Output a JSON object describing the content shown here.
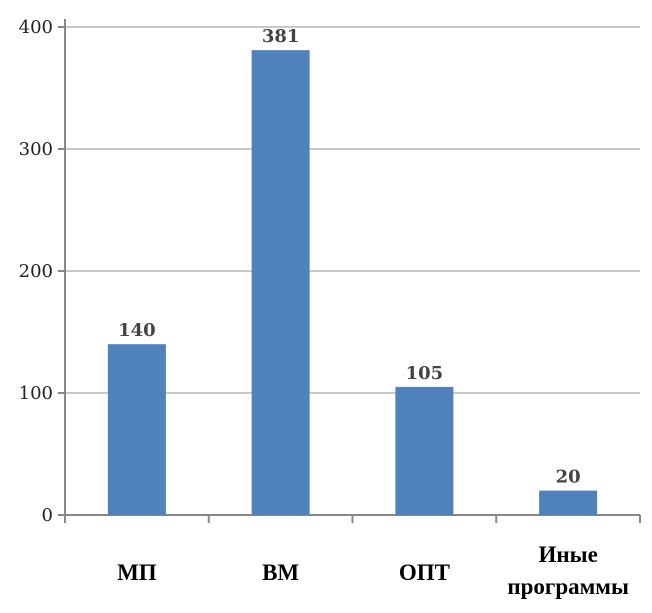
{
  "chart_data": {
    "type": "bar",
    "categories": [
      "МП",
      "ВМ",
      "ОПТ",
      "Иные программы"
    ],
    "category_lines": [
      [
        "МП"
      ],
      [
        "ВМ"
      ],
      [
        "ОПТ"
      ],
      [
        "Иные",
        "программы"
      ]
    ],
    "values": [
      140,
      381,
      105,
      20
    ],
    "data_labels": [
      "140",
      "381",
      "105",
      "20"
    ],
    "yticks": [
      "0",
      "100",
      "200",
      "300",
      "400"
    ],
    "ylim": [
      0,
      400
    ],
    "grid": true,
    "title": "",
    "xlabel": "",
    "ylabel": "",
    "colors": {
      "bar": "#4f81bd",
      "grid": "#c8c8c8",
      "axis": "#888888"
    }
  }
}
